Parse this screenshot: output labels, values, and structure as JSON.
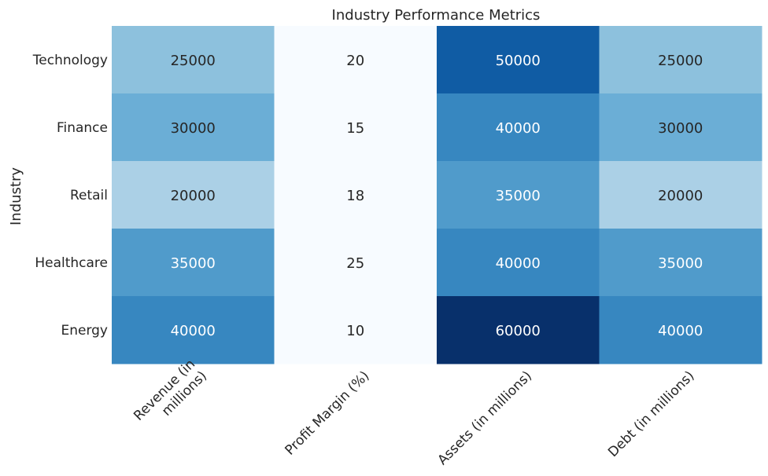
{
  "chart_data": {
    "type": "heatmap",
    "title": "Industry Performance Metrics",
    "xlabel": "",
    "ylabel": "Industry",
    "rows": [
      "Technology",
      "Finance",
      "Retail",
      "Healthcare",
      "Energy"
    ],
    "columns": [
      [
        "Revenue (in",
        "millions)"
      ],
      [
        "Profit Margin (%)"
      ],
      [
        "Assets (in millions)"
      ],
      [
        "Debt (in millions)"
      ]
    ],
    "values": [
      [
        25000,
        20,
        50000,
        25000
      ],
      [
        30000,
        15,
        40000,
        30000
      ],
      [
        20000,
        18,
        35000,
        20000
      ],
      [
        35000,
        25,
        40000,
        35000
      ],
      [
        40000,
        10,
        60000,
        40000
      ]
    ],
    "colormap": "Blues",
    "vmin": 0,
    "vmax": 60000,
    "colorbar": false,
    "annotations": true
  }
}
